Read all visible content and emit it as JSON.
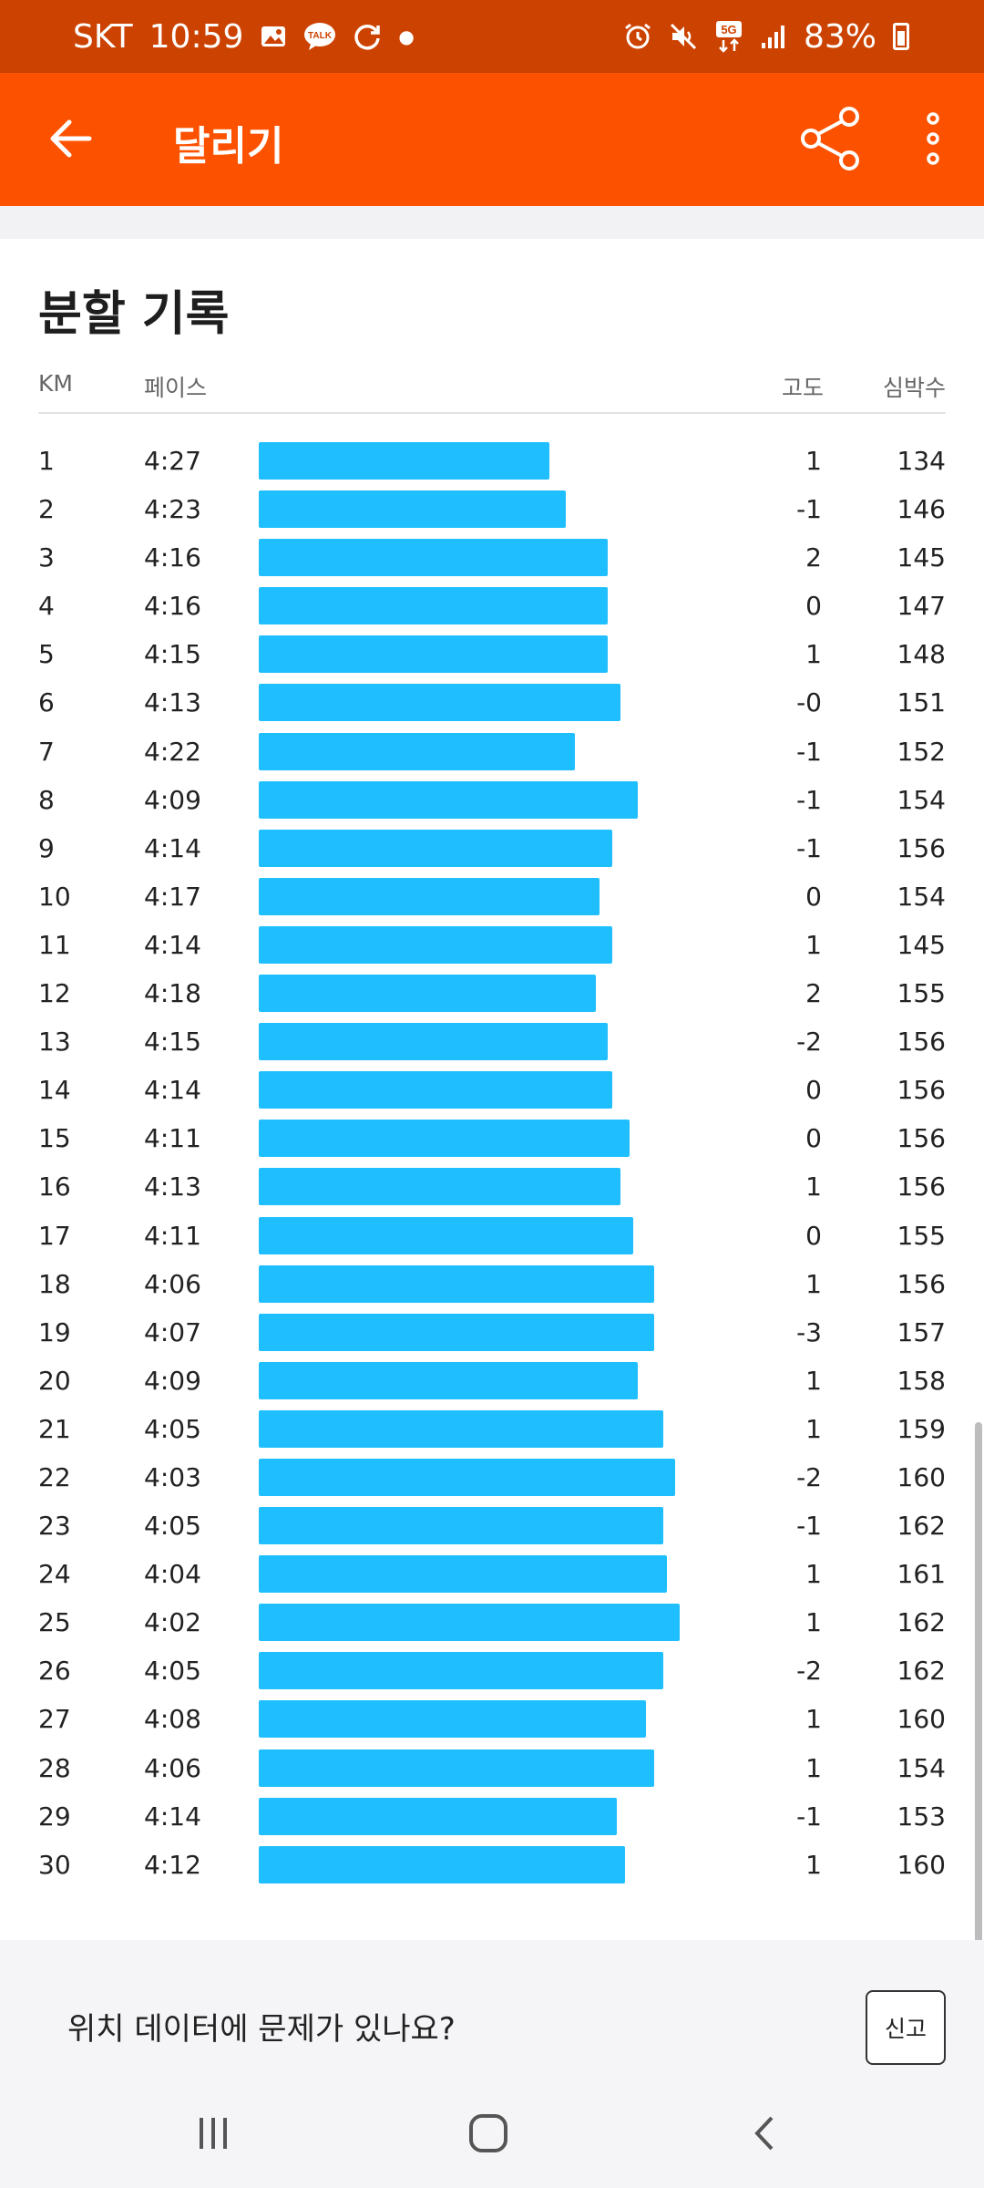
{
  "status_bar": {
    "carrier": "SKT",
    "time": "10:59",
    "talk_label": "TALK",
    "network": "5G",
    "battery": "83%"
  },
  "app_bar": {
    "title": "달리기"
  },
  "splits": {
    "title": "분할 기록",
    "headers": {
      "km": "KM",
      "pace": "페이스",
      "elevation": "고도",
      "heart_rate": "심박수"
    },
    "rows": [
      {
        "km": "1",
        "pace": "4:27",
        "elev": "1",
        "hr": "134",
        "bar": 0.69
      },
      {
        "km": "2",
        "pace": "4:23",
        "elev": "-1",
        "hr": "146",
        "bar": 0.73
      },
      {
        "km": "3",
        "pace": "4:16",
        "elev": "2",
        "hr": "145",
        "bar": 0.83
      },
      {
        "km": "4",
        "pace": "4:16",
        "elev": "0",
        "hr": "147",
        "bar": 0.83
      },
      {
        "km": "5",
        "pace": "4:15",
        "elev": "1",
        "hr": "148",
        "bar": 0.83
      },
      {
        "km": "6",
        "pace": "4:13",
        "elev": "-0",
        "hr": "151",
        "bar": 0.86
      },
      {
        "km": "7",
        "pace": "4:22",
        "elev": "-1",
        "hr": "152",
        "bar": 0.75
      },
      {
        "km": "8",
        "pace": "4:09",
        "elev": "-1",
        "hr": "154",
        "bar": 0.9
      },
      {
        "km": "9",
        "pace": "4:14",
        "elev": "-1",
        "hr": "156",
        "bar": 0.84
      },
      {
        "km": "10",
        "pace": "4:17",
        "elev": "0",
        "hr": "154",
        "bar": 0.81
      },
      {
        "km": "11",
        "pace": "4:14",
        "elev": "1",
        "hr": "145",
        "bar": 0.84
      },
      {
        "km": "12",
        "pace": "4:18",
        "elev": "2",
        "hr": "155",
        "bar": 0.8
      },
      {
        "km": "13",
        "pace": "4:15",
        "elev": "-2",
        "hr": "156",
        "bar": 0.83
      },
      {
        "km": "14",
        "pace": "4:14",
        "elev": "0",
        "hr": "156",
        "bar": 0.84
      },
      {
        "km": "15",
        "pace": "4:11",
        "elev": "0",
        "hr": "156",
        "bar": 0.88
      },
      {
        "km": "16",
        "pace": "4:13",
        "elev": "1",
        "hr": "156",
        "bar": 0.86
      },
      {
        "km": "17",
        "pace": "4:11",
        "elev": "0",
        "hr": "155",
        "bar": 0.89
      },
      {
        "km": "18",
        "pace": "4:06",
        "elev": "1",
        "hr": "156",
        "bar": 0.94
      },
      {
        "km": "19",
        "pace": "4:07",
        "elev": "-3",
        "hr": "157",
        "bar": 0.94
      },
      {
        "km": "20",
        "pace": "4:09",
        "elev": "1",
        "hr": "158",
        "bar": 0.9
      },
      {
        "km": "21",
        "pace": "4:05",
        "elev": "1",
        "hr": "159",
        "bar": 0.96
      },
      {
        "km": "22",
        "pace": "4:03",
        "elev": "-2",
        "hr": "160",
        "bar": 0.99
      },
      {
        "km": "23",
        "pace": "4:05",
        "elev": "-1",
        "hr": "162",
        "bar": 0.96
      },
      {
        "km": "24",
        "pace": "4:04",
        "elev": "1",
        "hr": "161",
        "bar": 0.97
      },
      {
        "km": "25",
        "pace": "4:02",
        "elev": "1",
        "hr": "162",
        "bar": 1.0
      },
      {
        "km": "26",
        "pace": "4:05",
        "elev": "-2",
        "hr": "162",
        "bar": 0.96
      },
      {
        "km": "27",
        "pace": "4:08",
        "elev": "1",
        "hr": "160",
        "bar": 0.92
      },
      {
        "km": "28",
        "pace": "4:06",
        "elev": "1",
        "hr": "154",
        "bar": 0.94
      },
      {
        "km": "29",
        "pace": "4:14",
        "elev": "-1",
        "hr": "153",
        "bar": 0.85
      },
      {
        "km": "30",
        "pace": "4:12",
        "elev": "1",
        "hr": "160",
        "bar": 0.87
      }
    ]
  },
  "footer": {
    "question": "위치 데이터에 문제가 있나요?",
    "report_label": "신고"
  },
  "colors": {
    "status_bar": "#cc4200",
    "app_bar": "#fc5200",
    "bar": "#1fbfff"
  },
  "icons": [
    "image-icon",
    "talk-icon",
    "sync-icon",
    "alarm-icon",
    "mute-icon",
    "signal-icon",
    "battery-icon",
    "back-arrow-icon",
    "share-icon",
    "more-vert-icon",
    "recent-apps-icon",
    "home-icon",
    "nav-back-icon"
  ]
}
